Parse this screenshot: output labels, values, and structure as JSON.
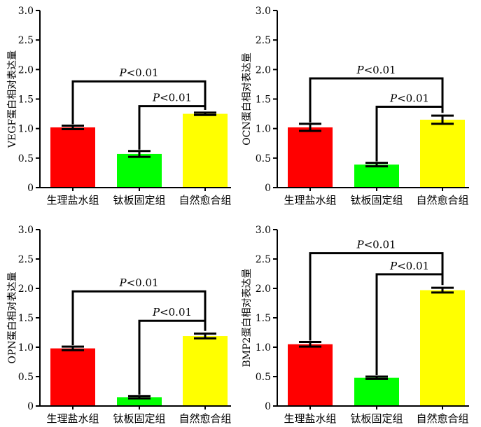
{
  "colors": {
    "series": [
      "#ff0000",
      "#00ff00",
      "#ffff00"
    ],
    "axis": "#000000",
    "error_bar": "#000000",
    "bracket": "#000000"
  },
  "chart_data": [
    {
      "type": "bar",
      "ylabel": "VEGF蛋白相对表达量",
      "categories": [
        "生理盐水组",
        "钛板固定组",
        "自然愈合组"
      ],
      "values": [
        1.02,
        0.57,
        1.25
      ],
      "errors": [
        0.03,
        0.05,
        0.02
      ],
      "ylim": [
        0,
        3.0
      ],
      "yticks": [
        "0",
        "0.5",
        "1.0",
        "1.5",
        "2.0",
        "2.5",
        "3.0"
      ],
      "grid": false,
      "comparisons": [
        {
          "from": 0,
          "to": 2,
          "label_prefix": "P",
          "label_rest": "<0.01",
          "level": 1.8
        },
        {
          "from": 1,
          "to": 2,
          "label_prefix": "P",
          "label_rest": "<0.01",
          "level": 1.38
        }
      ]
    },
    {
      "type": "bar",
      "ylabel": "OCN蛋白相对表达量",
      "categories": [
        "生理盐水组",
        "钛板固定组",
        "自然愈合组"
      ],
      "values": [
        1.02,
        0.39,
        1.15
      ],
      "errors": [
        0.06,
        0.03,
        0.07
      ],
      "ylim": [
        0,
        3.0
      ],
      "yticks": [
        "0",
        "0.5",
        "1.0",
        "1.5",
        "2.0",
        "2.5",
        "3.0"
      ],
      "grid": false,
      "comparisons": [
        {
          "from": 0,
          "to": 2,
          "label_prefix": "P",
          "label_rest": "<0.01",
          "level": 1.85
        },
        {
          "from": 1,
          "to": 2,
          "label_prefix": "P",
          "label_rest": "<0.01",
          "level": 1.37
        }
      ]
    },
    {
      "type": "bar",
      "ylabel": "OPN蛋白相对表达量",
      "categories": [
        "生理盐水组",
        "钛板固定组",
        "自然愈合组"
      ],
      "values": [
        0.98,
        0.15,
        1.19
      ],
      "errors": [
        0.03,
        0.02,
        0.04
      ],
      "ylim": [
        0,
        3.0
      ],
      "yticks": [
        "0",
        "0.5",
        "1.0",
        "1.5",
        "2.0",
        "2.5",
        "3.0"
      ],
      "grid": false,
      "comparisons": [
        {
          "from": 0,
          "to": 2,
          "label_prefix": "P",
          "label_rest": "<0.01",
          "level": 1.95
        },
        {
          "from": 1,
          "to": 2,
          "label_prefix": "P",
          "label_rest": "<0.01",
          "level": 1.45
        }
      ]
    },
    {
      "type": "bar",
      "ylabel": "BMP2蛋白相对表达量",
      "categories": [
        "生理盐水组",
        "钛板固定组",
        "自然愈合组"
      ],
      "values": [
        1.05,
        0.48,
        1.97
      ],
      "errors": [
        0.04,
        0.02,
        0.04
      ],
      "ylim": [
        0,
        3.0
      ],
      "yticks": [
        "0",
        "0.5",
        "1.0",
        "1.5",
        "2.0",
        "2.5",
        "3.0"
      ],
      "grid": false,
      "comparisons": [
        {
          "from": 0,
          "to": 2,
          "label_prefix": "P",
          "label_rest": "<0.01",
          "level": 2.6
        },
        {
          "from": 1,
          "to": 2,
          "label_prefix": "P",
          "label_rest": "<0.01",
          "level": 2.24
        }
      ]
    }
  ]
}
